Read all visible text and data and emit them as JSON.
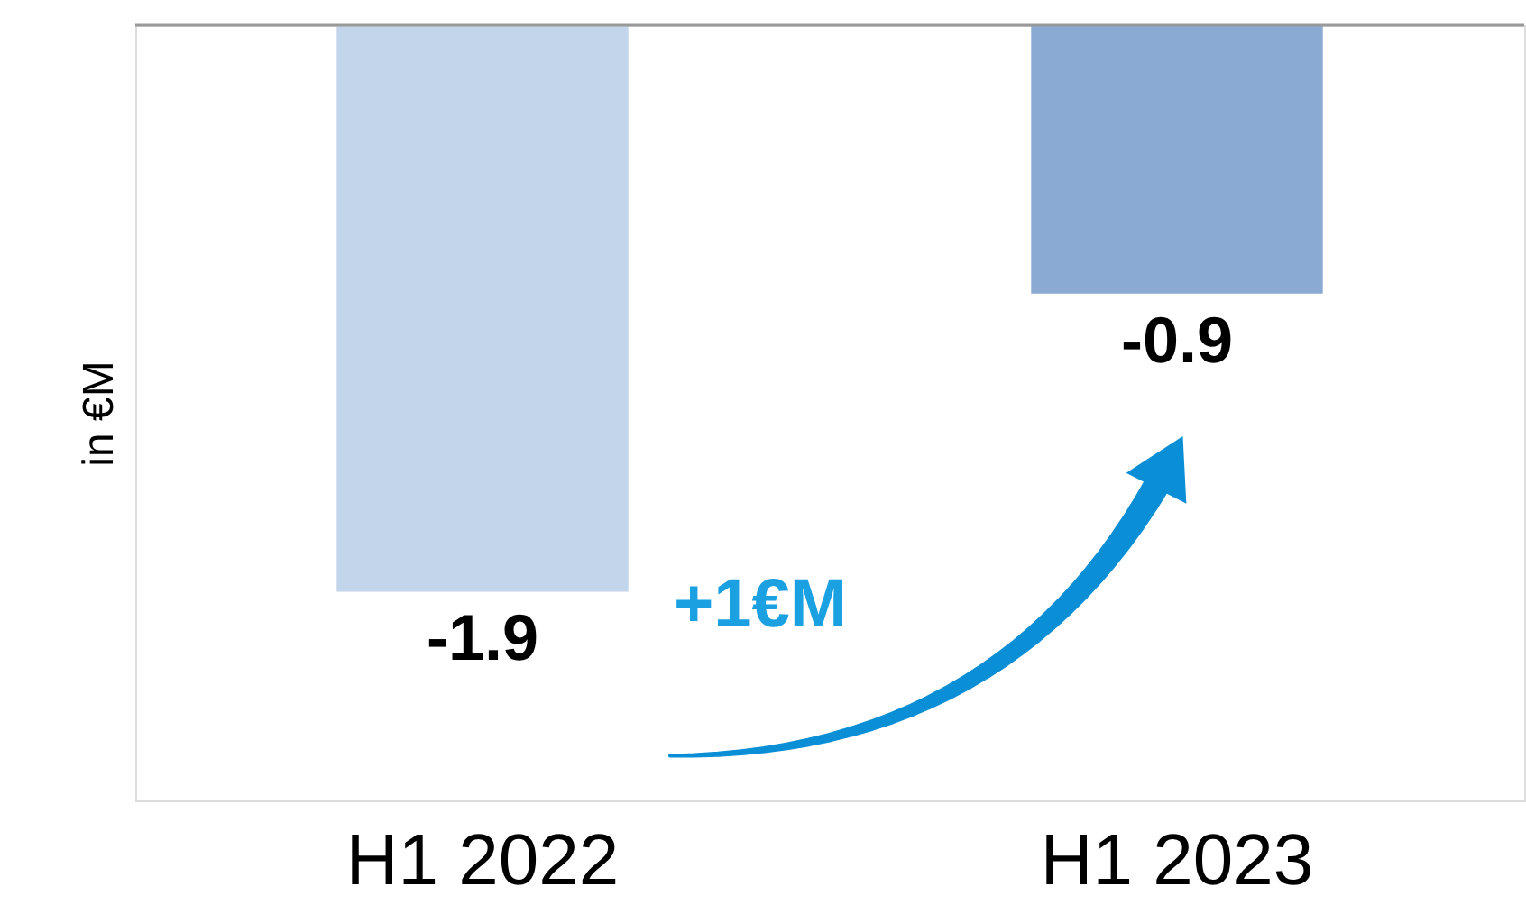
{
  "chart_data": {
    "type": "bar",
    "ylabel": "in €M",
    "categories": [
      "H1 2022",
      "H1 2023"
    ],
    "values": [
      -1.9,
      -0.9
    ],
    "colors": [
      "#c3d5ea",
      "#8aaad4"
    ],
    "ylim": [
      -2.6,
      0
    ],
    "data_labels": true,
    "tick_labels": "x",
    "grid": false,
    "annotations": [
      "+1€M"
    ]
  }
}
